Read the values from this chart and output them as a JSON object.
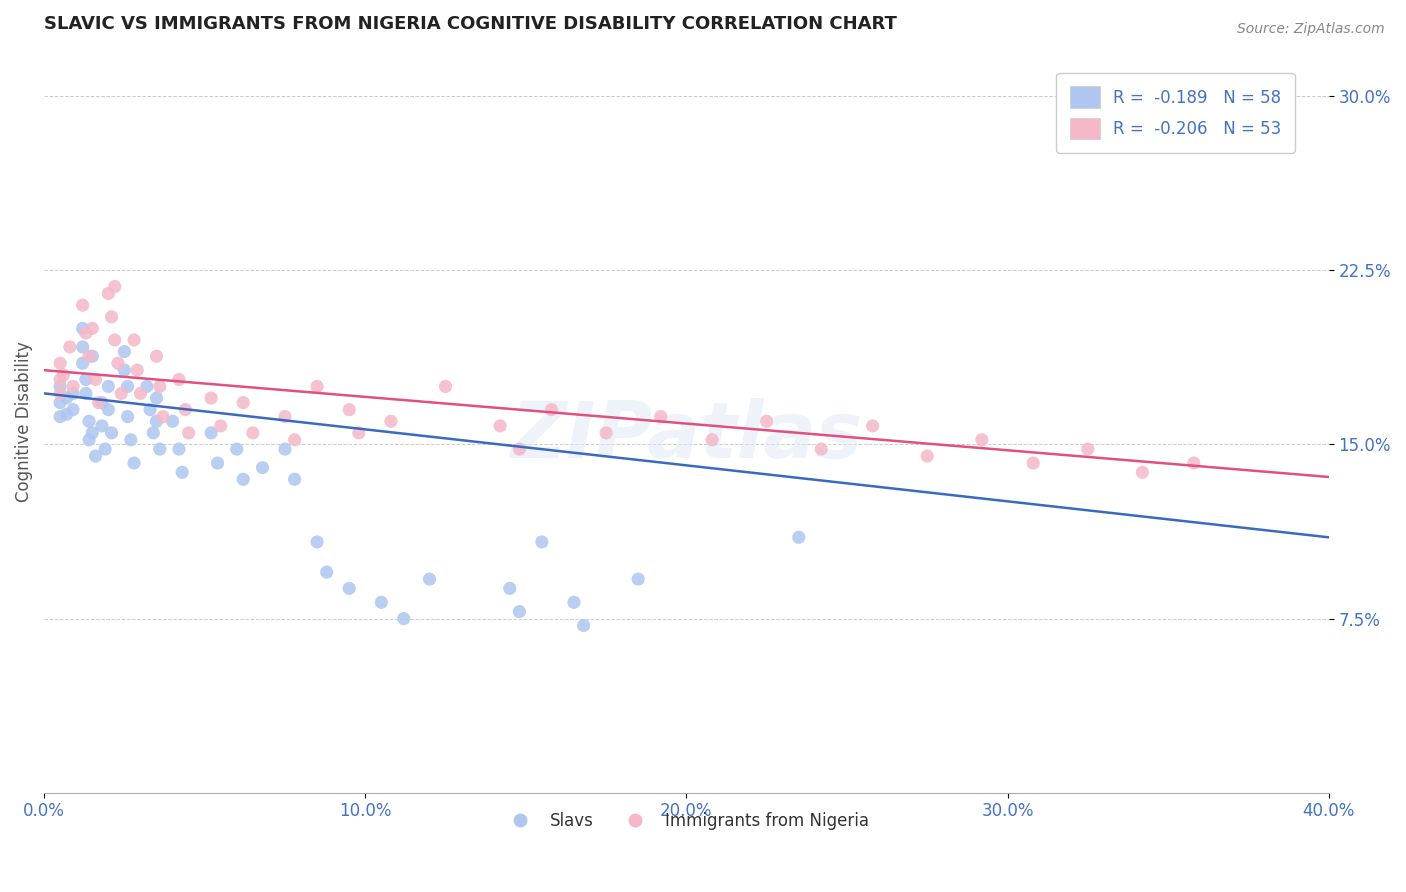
{
  "title": "SLAVIC VS IMMIGRANTS FROM NIGERIA COGNITIVE DISABILITY CORRELATION CHART",
  "source": "Source: ZipAtlas.com",
  "ylabel": "Cognitive Disability",
  "xlim": [
    0.0,
    0.4
  ],
  "ylim": [
    0.0,
    0.32
  ],
  "yticks": [
    0.075,
    0.15,
    0.225,
    0.3
  ],
  "ytick_labels": [
    "7.5%",
    "15.0%",
    "22.5%",
    "30.0%"
  ],
  "xticks": [
    0.0,
    0.1,
    0.2,
    0.3,
    0.4
  ],
  "xtick_labels": [
    "0.0%",
    "10.0%",
    "20.0%",
    "30.0%",
    "40.0%"
  ],
  "slavs_color": "#aec6f0",
  "nigeria_color": "#f4b8c8",
  "line_slavs_color": "#3a6abf",
  "line_nigeria_color": "#e05080",
  "tick_color": "#4472c4",
  "background_color": "#ffffff",
  "grid_color": "#cccccc",
  "legend_label_slavs": "R =  -0.189   N = 58",
  "legend_label_nigeria": "R =  -0.206   N = 53",
  "legend_slavs_short": "Slavs",
  "legend_nigeria_short": "Immigrants from Nigeria",
  "watermark": "ZIPatlas",
  "slavs_x": [
    0.005,
    0.005,
    0.005,
    0.007,
    0.007,
    0.009,
    0.009,
    0.012,
    0.012,
    0.012,
    0.013,
    0.013,
    0.014,
    0.014,
    0.015,
    0.015,
    0.016,
    0.018,
    0.018,
    0.019,
    0.02,
    0.02,
    0.021,
    0.025,
    0.025,
    0.026,
    0.026,
    0.027,
    0.028,
    0.032,
    0.033,
    0.034,
    0.035,
    0.035,
    0.036,
    0.04,
    0.042,
    0.043,
    0.052,
    0.054,
    0.06,
    0.062,
    0.068,
    0.075,
    0.078,
    0.085,
    0.088,
    0.095,
    0.105,
    0.112,
    0.12,
    0.145,
    0.148,
    0.155,
    0.165,
    0.168,
    0.185,
    0.235
  ],
  "slavs_y": [
    0.175,
    0.168,
    0.162,
    0.17,
    0.163,
    0.172,
    0.165,
    0.2,
    0.192,
    0.185,
    0.178,
    0.172,
    0.16,
    0.152,
    0.188,
    0.155,
    0.145,
    0.168,
    0.158,
    0.148,
    0.175,
    0.165,
    0.155,
    0.19,
    0.182,
    0.175,
    0.162,
    0.152,
    0.142,
    0.175,
    0.165,
    0.155,
    0.17,
    0.16,
    0.148,
    0.16,
    0.148,
    0.138,
    0.155,
    0.142,
    0.148,
    0.135,
    0.14,
    0.148,
    0.135,
    0.108,
    0.095,
    0.088,
    0.082,
    0.075,
    0.092,
    0.088,
    0.078,
    0.108,
    0.082,
    0.072,
    0.092,
    0.11
  ],
  "nigeria_x": [
    0.005,
    0.005,
    0.005,
    0.006,
    0.008,
    0.009,
    0.012,
    0.013,
    0.014,
    0.015,
    0.016,
    0.017,
    0.02,
    0.021,
    0.022,
    0.022,
    0.023,
    0.024,
    0.028,
    0.029,
    0.03,
    0.035,
    0.036,
    0.037,
    0.042,
    0.044,
    0.045,
    0.052,
    0.055,
    0.062,
    0.065,
    0.075,
    0.078,
    0.085,
    0.095,
    0.098,
    0.108,
    0.125,
    0.142,
    0.148,
    0.158,
    0.175,
    0.192,
    0.208,
    0.225,
    0.242,
    0.258,
    0.275,
    0.292,
    0.308,
    0.325,
    0.342,
    0.358
  ],
  "nigeria_y": [
    0.185,
    0.178,
    0.172,
    0.18,
    0.192,
    0.175,
    0.21,
    0.198,
    0.188,
    0.2,
    0.178,
    0.168,
    0.215,
    0.205,
    0.218,
    0.195,
    0.185,
    0.172,
    0.195,
    0.182,
    0.172,
    0.188,
    0.175,
    0.162,
    0.178,
    0.165,
    0.155,
    0.17,
    0.158,
    0.168,
    0.155,
    0.162,
    0.152,
    0.175,
    0.165,
    0.155,
    0.16,
    0.175,
    0.158,
    0.148,
    0.165,
    0.155,
    0.162,
    0.152,
    0.16,
    0.148,
    0.158,
    0.145,
    0.152,
    0.142,
    0.148,
    0.138,
    0.142
  ]
}
